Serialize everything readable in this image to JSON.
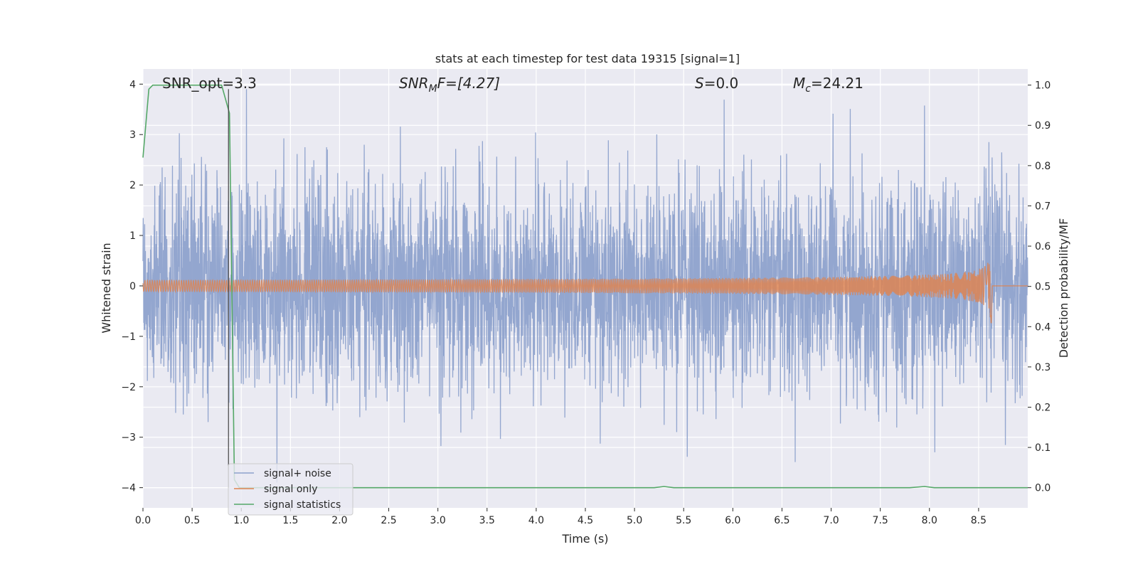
{
  "chart_data": {
    "type": "line",
    "title": "stats at each timestep for test data 19315 [signal=1]",
    "xlabel": "Time (s)",
    "ylabel_left": "Whitened strain",
    "ylabel_right": "Detection probability/MF",
    "xlim": [
      0.0,
      9.0
    ],
    "ylim_left": [
      -4.4,
      4.3
    ],
    "ylim_right": [
      -0.05,
      1.04
    ],
    "x_ticks": [
      "0.0",
      "0.5",
      "1.0",
      "1.5",
      "2.0",
      "2.5",
      "3.0",
      "3.5",
      "4.0",
      "4.5",
      "5.0",
      "5.5",
      "6.0",
      "6.5",
      "7.0",
      "7.5",
      "8.0",
      "8.5"
    ],
    "x_tick_values": [
      0.0,
      0.5,
      1.0,
      1.5,
      2.0,
      2.5,
      3.0,
      3.5,
      4.0,
      4.5,
      5.0,
      5.5,
      6.0,
      6.5,
      7.0,
      7.5,
      8.0,
      8.5
    ],
    "y_left_ticks": [
      "4",
      "3",
      "2",
      "1",
      "0",
      "−1",
      "−2",
      "−3",
      "−4"
    ],
    "y_left_tick_values": [
      4,
      3,
      2,
      1,
      0,
      -1,
      -2,
      -3,
      -4
    ],
    "y_right_ticks": [
      "1.0",
      "0.9",
      "0.8",
      "0.7",
      "0.6",
      "0.5",
      "0.4",
      "0.3",
      "0.2",
      "0.1",
      "0.0"
    ],
    "y_right_tick_values": [
      1.0,
      0.9,
      0.8,
      0.7,
      0.6,
      0.5,
      0.4,
      0.3,
      0.2,
      0.1,
      0.0
    ],
    "grid": true,
    "legend_placement": "lower-left",
    "annotations": {
      "snr_opt": "SNR_opt=3.3",
      "snr_mf_base": "SNR",
      "snr_mf_sub": "M",
      "snr_mf_rest": "F=[4.27]",
      "s_base": "S",
      "s_rest": "=0.0",
      "mc_base": "M",
      "mc_sub": "c",
      "mc_rest": "=24.21"
    },
    "vertical_marker_x": 0.87,
    "series": [
      {
        "name": "signal+ noise",
        "color": "#8ea2cc",
        "axis": "left",
        "kind": "noise",
        "amplitude_typical": 2.2,
        "amplitude_peak": 3.9
      },
      {
        "name": "signal only",
        "color": "#dd8452",
        "axis": "left",
        "kind": "chirp",
        "merger_time": 8.63,
        "peak_amplitude": 0.8
      },
      {
        "name": "signal statistics",
        "color": "#55a868",
        "axis": "right",
        "x": [
          0.0,
          0.06,
          0.1,
          0.15,
          0.3,
          0.5,
          0.7,
          0.8,
          0.88,
          0.93,
          0.98,
          1.5,
          2.0,
          3.0,
          4.0,
          5.0,
          5.2,
          5.3,
          5.4,
          5.6,
          6.0,
          7.0,
          7.8,
          7.95,
          8.05,
          8.3,
          9.0
        ],
        "y": [
          0.82,
          0.99,
          1.0,
          1.0,
          1.0,
          1.0,
          1.0,
          1.0,
          0.93,
          0.02,
          0.0,
          0.0,
          0.0,
          0.0,
          0.0,
          0.0,
          0.0,
          0.003,
          0.0,
          0.0,
          0.0,
          0.0,
          0.0,
          0.003,
          0.0,
          0.0,
          0.0
        ]
      }
    ]
  }
}
